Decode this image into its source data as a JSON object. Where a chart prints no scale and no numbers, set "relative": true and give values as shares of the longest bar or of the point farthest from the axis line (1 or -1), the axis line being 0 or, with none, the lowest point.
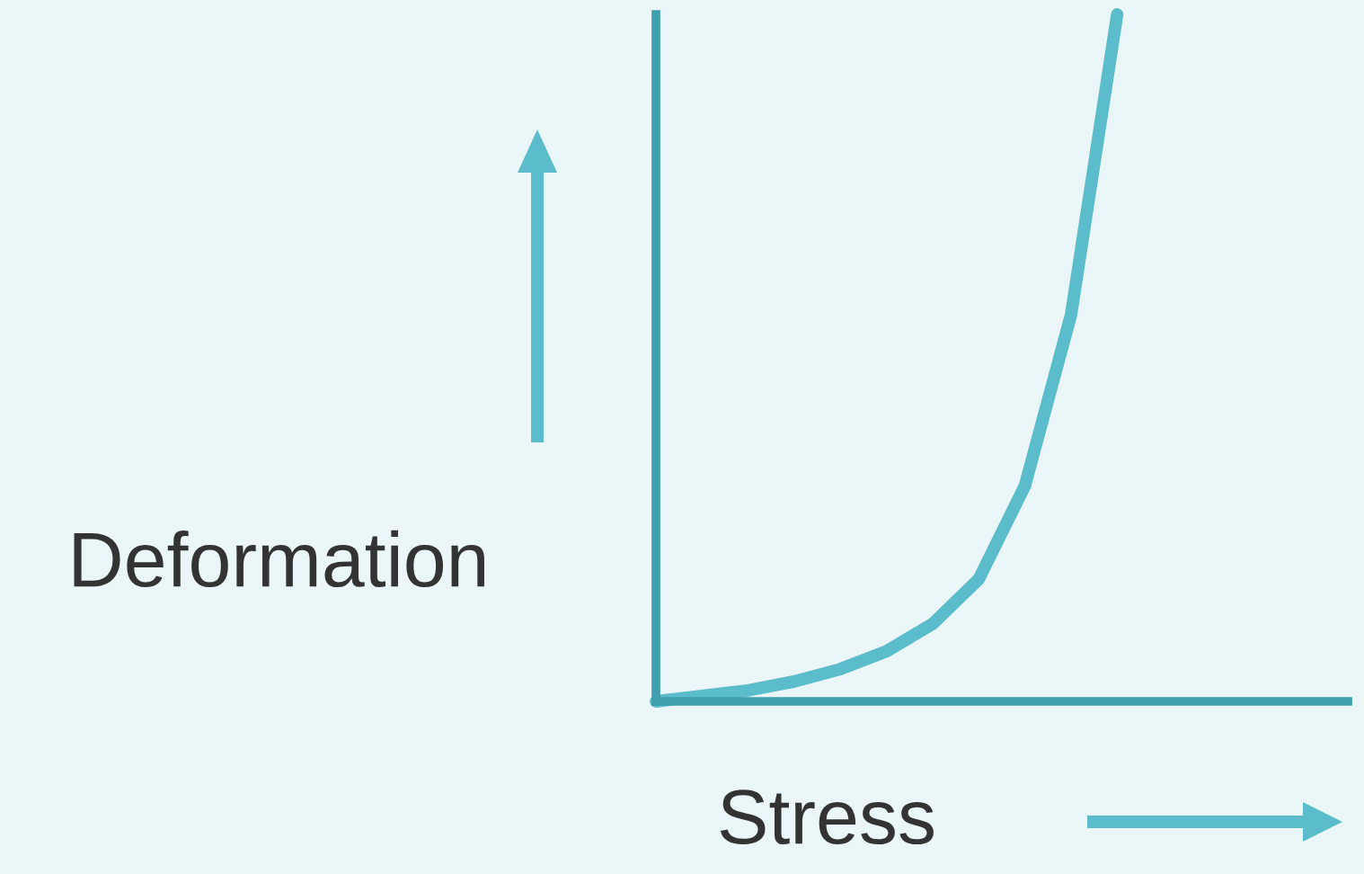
{
  "chart_data": {
    "type": "line",
    "relative": true,
    "xlabel": "Stress",
    "ylabel": "Deformation",
    "categories": [
      null,
      null,
      null,
      null,
      null,
      null,
      null,
      null,
      null,
      null,
      null,
      null,
      null,
      null,
      null,
      null
    ],
    "series": [
      {
        "color": "#5bbccc",
        "values": [
          0,
          0.008,
          0.016,
          0.029,
          0.047,
          0.073,
          0.113,
          0.178,
          0.314,
          0.563,
          1,
          null,
          null,
          null,
          null,
          null
        ]
      }
    ],
    "grid": false,
    "legend": false,
    "marker": "none",
    "line_style": "solid"
  }
}
